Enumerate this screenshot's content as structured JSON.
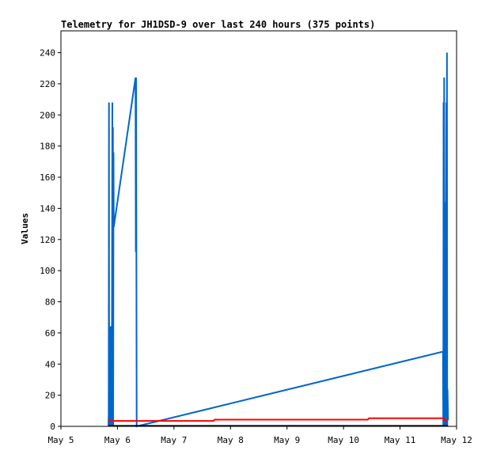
{
  "chart_data": {
    "type": "line",
    "title": "Telemetry for JH1DSD-9 over last 240 hours (375 points)",
    "xlabel": "",
    "ylabel": "Values",
    "x_axis": {
      "labels": [
        "May 5",
        "May 6",
        "May 7",
        "May 8",
        "May 9",
        "May 10",
        "May 11",
        "May 12"
      ],
      "range_days": [
        5,
        12
      ]
    },
    "y_axis": {
      "ticks": [
        0,
        20,
        40,
        60,
        80,
        100,
        120,
        140,
        160,
        180,
        200,
        220,
        240
      ],
      "range": [
        0,
        254
      ]
    },
    "grid": false,
    "legend": "none",
    "series": [
      {
        "color": "#0066cc",
        "points": [
          [
            5.84,
            0
          ],
          [
            5.845,
            8
          ],
          [
            5.85,
            208
          ],
          [
            5.853,
            0
          ],
          [
            5.856,
            32
          ],
          [
            5.86,
            64
          ],
          [
            5.863,
            0
          ],
          [
            5.867,
            16
          ],
          [
            5.872,
            8
          ],
          [
            5.876,
            0
          ],
          [
            5.88,
            64
          ],
          [
            5.885,
            0
          ],
          [
            5.89,
            64
          ],
          [
            5.895,
            64
          ],
          [
            5.9,
            0
          ],
          [
            5.91,
            208
          ],
          [
            5.913,
            0
          ],
          [
            5.92,
            192
          ],
          [
            5.925,
            0
          ],
          [
            5.93,
            176
          ],
          [
            5.935,
            128
          ],
          [
            6.32,
            224
          ],
          [
            6.325,
            112
          ],
          [
            6.33,
            224
          ],
          [
            6.34,
            0
          ],
          [
            11.76,
            48
          ],
          [
            11.765,
            0
          ],
          [
            11.77,
            208
          ],
          [
            11.775,
            0
          ],
          [
            11.78,
            224
          ],
          [
            11.785,
            128
          ],
          [
            11.79,
            0
          ],
          [
            11.8,
            72
          ],
          [
            11.805,
            144
          ],
          [
            11.81,
            0
          ],
          [
            11.815,
            112
          ],
          [
            11.82,
            208
          ],
          [
            11.825,
            0
          ],
          [
            11.83,
            240
          ],
          [
            11.835,
            0
          ],
          [
            11.84,
            24
          ],
          [
            11.85,
            4
          ]
        ]
      },
      {
        "color": "#ff0000",
        "points": [
          [
            5.84,
            3.5
          ],
          [
            7.7,
            3.5
          ],
          [
            7.72,
            4.3
          ],
          [
            10.43,
            4.3
          ],
          [
            10.45,
            5.2
          ],
          [
            11.77,
            5.2
          ],
          [
            11.79,
            4.0
          ],
          [
            11.85,
            4.0
          ]
        ]
      },
      {
        "color": "#000000",
        "points": [
          [
            5.84,
            0.3
          ],
          [
            11.85,
            0.3
          ]
        ]
      }
    ]
  }
}
